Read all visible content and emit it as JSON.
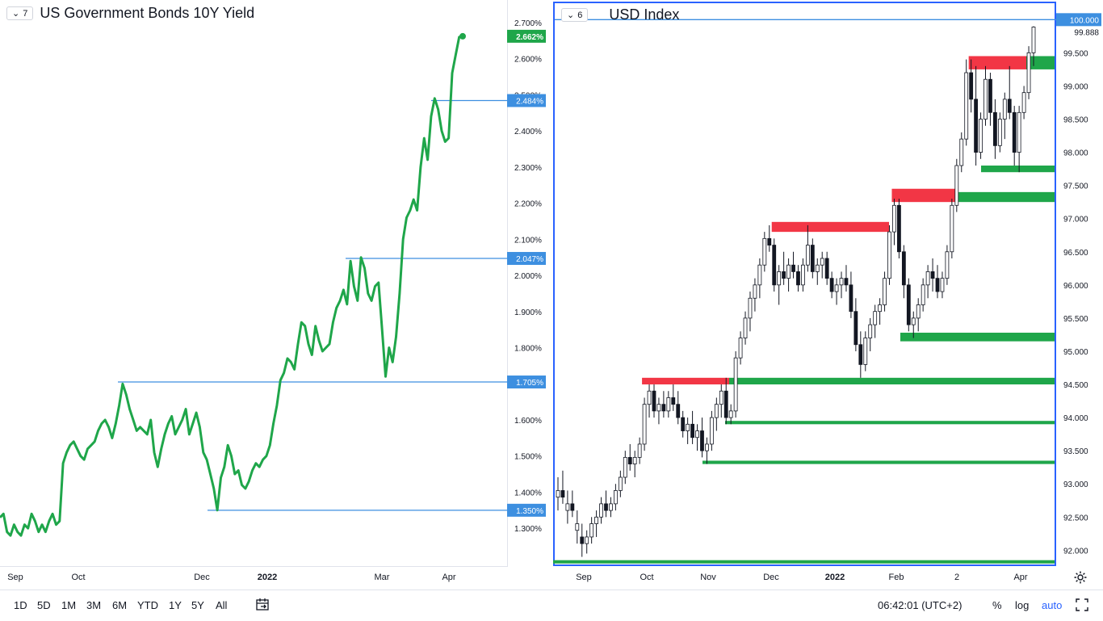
{
  "left_chart": {
    "legend_count": "7",
    "title": "US Government Bonds 10Y Yield",
    "y_ticks": [
      "2.700%",
      "2.600%",
      "2.500%",
      "2.400%",
      "2.300%",
      "2.200%",
      "2.100%",
      "2.000%",
      "1.900%",
      "1.800%",
      "1.600%",
      "1.500%",
      "1.400%",
      "1.300%"
    ],
    "price_labels": [
      "2.662%",
      "2.484%",
      "2.047%",
      "1.705%",
      "1.350%"
    ],
    "x_ticks": [
      "Sep",
      "Oct",
      "Dec",
      "2022",
      "Mar",
      "Apr"
    ],
    "colors": {
      "line": "#1fa64a",
      "hline": "#3d8fe0",
      "last_label": "#1fa64a",
      "hline_label": "#3d8fe0"
    }
  },
  "right_chart": {
    "legend_count": "6",
    "title": "USD Index",
    "y_ticks": [
      "99.500",
      "99.000",
      "98.500",
      "98.000",
      "97.500",
      "97.000",
      "96.500",
      "96.000",
      "95.500",
      "95.000",
      "94.500",
      "94.000",
      "93.500",
      "93.000",
      "92.500",
      "92.000"
    ],
    "price_labels": [
      "100.000",
      "99.888"
    ],
    "x_ticks": [
      "Sep",
      "Oct",
      "Nov",
      "Dec",
      "2022",
      "Feb",
      "2",
      "Apr"
    ],
    "colors": {
      "resistance": "#f23645",
      "support": "#1fa64a",
      "hline": "#3d8fe0",
      "candle": "#131722"
    }
  },
  "bottom_bar": {
    "timeframes": [
      "1D",
      "5D",
      "1M",
      "3M",
      "6M",
      "YTD",
      "1Y",
      "5Y",
      "All"
    ],
    "clock": "06:42:01 (UTC+2)",
    "percent": "%",
    "log": "log",
    "auto": "auto"
  },
  "chart_data": [
    {
      "type": "line",
      "title": "US Government Bonds 10Y Yield",
      "ylabel": "",
      "xlabel": "",
      "ylim": [
        1.22,
        2.74
      ],
      "x_ticks": [
        "Sep",
        "Oct",
        "Dec",
        "2022",
        "Mar",
        "Apr"
      ],
      "series": [
        {
          "values": [
            1.33,
            1.34,
            1.29,
            1.28,
            1.31,
            1.29,
            1.28,
            1.31,
            1.3,
            1.34,
            1.32,
            1.29,
            1.31,
            1.29,
            1.32,
            1.34,
            1.31,
            1.32,
            1.48,
            1.51,
            1.53,
            1.54,
            1.52,
            1.5,
            1.49,
            1.52,
            1.53,
            1.54,
            1.57,
            1.59,
            1.6,
            1.58,
            1.55,
            1.59,
            1.64,
            1.7,
            1.67,
            1.63,
            1.6,
            1.57,
            1.58,
            1.57,
            1.56,
            1.6,
            1.51,
            1.47,
            1.52,
            1.56,
            1.59,
            1.61,
            1.56,
            1.58,
            1.6,
            1.63,
            1.56,
            1.59,
            1.62,
            1.58,
            1.51,
            1.49,
            1.45,
            1.41,
            1.35,
            1.44,
            1.47,
            1.53,
            1.5,
            1.45,
            1.46,
            1.42,
            1.41,
            1.43,
            1.46,
            1.48,
            1.47,
            1.49,
            1.5,
            1.53,
            1.59,
            1.64,
            1.71,
            1.73,
            1.77,
            1.76,
            1.74,
            1.81,
            1.87,
            1.86,
            1.81,
            1.78,
            1.86,
            1.82,
            1.79,
            1.8,
            1.81,
            1.87,
            1.91,
            1.93,
            1.96,
            1.92,
            2.04,
            1.97,
            1.93,
            2.05,
            2.02,
            1.95,
            1.93,
            1.97,
            1.98,
            1.85,
            1.72,
            1.8,
            1.76,
            1.83,
            1.95,
            2.1,
            2.16,
            2.18,
            2.21,
            2.18,
            2.3,
            2.38,
            2.32,
            2.44,
            2.49,
            2.46,
            2.4,
            2.37,
            2.38,
            2.56,
            2.61,
            2.66,
            2.662
          ]
        }
      ],
      "horizontal_lines": [
        2.484,
        2.047,
        1.705,
        1.35
      ],
      "last_value": 2.662
    },
    {
      "type": "candlestick",
      "title": "USD Index",
      "ylim": [
        91.7,
        100.15
      ],
      "x_ticks": [
        "Sep",
        "Oct",
        "Nov",
        "Dec",
        "2022",
        "Feb",
        "2",
        "Apr"
      ],
      "ohlc": [
        [
          92.8,
          93.1,
          92.6,
          92.9
        ],
        [
          92.9,
          93.2,
          92.7,
          92.8
        ],
        [
          92.6,
          92.9,
          92.4,
          92.7
        ],
        [
          92.7,
          92.9,
          92.5,
          92.6
        ],
        [
          92.3,
          92.6,
          92.1,
          92.4
        ],
        [
          92.2,
          92.4,
          91.9,
          92.1
        ],
        [
          92.1,
          92.3,
          91.95,
          92.2
        ],
        [
          92.2,
          92.5,
          92.1,
          92.4
        ],
        [
          92.4,
          92.6,
          92.2,
          92.5
        ],
        [
          92.5,
          92.8,
          92.4,
          92.7
        ],
        [
          92.7,
          92.9,
          92.5,
          92.6
        ],
        [
          92.6,
          92.8,
          92.5,
          92.7
        ],
        [
          92.7,
          93.0,
          92.6,
          92.9
        ],
        [
          92.9,
          93.2,
          92.8,
          93.1
        ],
        [
          93.1,
          93.5,
          93.0,
          93.4
        ],
        [
          93.4,
          93.6,
          93.2,
          93.3
        ],
        [
          93.3,
          93.5,
          93.1,
          93.4
        ],
        [
          93.4,
          93.7,
          93.3,
          93.6
        ],
        [
          93.6,
          94.3,
          93.5,
          94.2
        ],
        [
          94.2,
          94.5,
          94.0,
          94.4
        ],
        [
          94.4,
          94.5,
          94.0,
          94.1
        ],
        [
          94.1,
          94.3,
          93.9,
          94.2
        ],
        [
          94.2,
          94.4,
          94.0,
          94.1
        ],
        [
          94.1,
          94.4,
          94.0,
          94.3
        ],
        [
          94.3,
          94.5,
          94.1,
          94.2
        ],
        [
          94.2,
          94.4,
          93.9,
          94.0
        ],
        [
          94.0,
          94.1,
          93.7,
          93.8
        ],
        [
          93.8,
          94.0,
          93.6,
          93.9
        ],
        [
          93.9,
          94.1,
          93.6,
          93.7
        ],
        [
          93.7,
          93.9,
          93.5,
          93.8
        ],
        [
          93.8,
          94.0,
          93.4,
          93.5
        ],
        [
          93.5,
          93.7,
          93.3,
          93.6
        ],
        [
          93.6,
          94.1,
          93.5,
          94.0
        ],
        [
          94.0,
          94.3,
          93.8,
          94.2
        ],
        [
          94.2,
          94.5,
          94.0,
          94.4
        ],
        [
          94.4,
          94.6,
          93.9,
          94.0
        ],
        [
          94.0,
          94.2,
          93.9,
          94.1
        ],
        [
          94.1,
          95.0,
          94.0,
          94.9
        ],
        [
          94.9,
          95.3,
          94.8,
          95.2
        ],
        [
          95.2,
          95.6,
          95.1,
          95.5
        ],
        [
          95.5,
          95.9,
          95.3,
          95.8
        ],
        [
          95.8,
          96.1,
          95.6,
          96.0
        ],
        [
          96.0,
          96.4,
          95.8,
          96.3
        ],
        [
          96.3,
          96.8,
          96.2,
          96.7
        ],
        [
          96.7,
          96.9,
          96.5,
          96.6
        ],
        [
          96.6,
          96.7,
          95.9,
          96.0
        ],
        [
          96.0,
          96.3,
          95.7,
          96.2
        ],
        [
          96.2,
          96.5,
          96.0,
          96.1
        ],
        [
          96.1,
          96.4,
          95.9,
          96.3
        ],
        [
          96.3,
          96.5,
          96.1,
          96.2
        ],
        [
          96.2,
          96.3,
          95.9,
          96.0
        ],
        [
          96.0,
          96.4,
          95.9,
          96.3
        ],
        [
          96.3,
          96.9,
          96.2,
          96.6
        ],
        [
          96.6,
          96.7,
          96.1,
          96.2
        ],
        [
          96.2,
          96.4,
          96.0,
          96.3
        ],
        [
          96.3,
          96.5,
          96.1,
          96.4
        ],
        [
          96.4,
          96.5,
          96.0,
          96.1
        ],
        [
          96.1,
          96.2,
          95.8,
          95.9
        ],
        [
          95.9,
          96.1,
          95.7,
          96.0
        ],
        [
          96.0,
          96.2,
          95.8,
          96.1
        ],
        [
          96.1,
          96.3,
          95.9,
          96.0
        ],
        [
          96.0,
          96.2,
          95.5,
          95.6
        ],
        [
          95.6,
          95.8,
          95.0,
          95.1
        ],
        [
          95.1,
          95.3,
          94.6,
          94.8
        ],
        [
          94.8,
          95.3,
          94.7,
          95.2
        ],
        [
          95.2,
          95.5,
          95.0,
          95.4
        ],
        [
          95.4,
          95.7,
          95.2,
          95.6
        ],
        [
          95.6,
          95.8,
          95.4,
          95.7
        ],
        [
          95.7,
          96.2,
          95.6,
          96.1
        ],
        [
          96.1,
          96.9,
          96.0,
          96.8
        ],
        [
          96.8,
          97.3,
          96.6,
          97.2
        ],
        [
          97.2,
          97.3,
          96.4,
          96.5
        ],
        [
          96.5,
          96.6,
          95.8,
          96.0
        ],
        [
          96.0,
          96.1,
          95.3,
          95.4
        ],
        [
          95.4,
          95.6,
          95.2,
          95.5
        ],
        [
          95.5,
          95.8,
          95.3,
          95.7
        ],
        [
          95.7,
          96.1,
          95.6,
          96.0
        ],
        [
          96.0,
          96.3,
          95.8,
          96.2
        ],
        [
          96.2,
          96.4,
          95.9,
          96.1
        ],
        [
          96.1,
          96.3,
          95.8,
          95.9
        ],
        [
          95.9,
          96.2,
          95.8,
          96.1
        ],
        [
          96.1,
          96.6,
          96.0,
          96.5
        ],
        [
          96.5,
          97.3,
          96.4,
          97.2
        ],
        [
          97.2,
          97.9,
          97.1,
          97.8
        ],
        [
          97.8,
          98.3,
          97.7,
          98.2
        ],
        [
          98.2,
          99.4,
          98.1,
          99.2
        ],
        [
          99.2,
          99.4,
          98.6,
          98.8
        ],
        [
          98.8,
          99.3,
          97.8,
          98.0
        ],
        [
          98.0,
          98.6,
          97.9,
          98.5
        ],
        [
          98.5,
          99.3,
          98.4,
          99.1
        ],
        [
          99.1,
          99.2,
          98.4,
          98.6
        ],
        [
          98.6,
          98.8,
          97.9,
          98.1
        ],
        [
          98.1,
          98.6,
          98.0,
          98.5
        ],
        [
          98.5,
          98.9,
          98.2,
          98.8
        ],
        [
          98.8,
          99.3,
          98.5,
          98.6
        ],
        [
          98.6,
          98.7,
          97.8,
          98.0
        ],
        [
          98.0,
          98.7,
          97.7,
          98.6
        ],
        [
          98.6,
          99.0,
          98.5,
          98.9
        ],
        [
          98.9,
          99.6,
          98.8,
          99.5
        ],
        [
          99.5,
          99.9,
          99.3,
          99.888
        ]
      ],
      "resistance_zones": [
        [
          94.5,
          94.6
        ],
        [
          96.8,
          96.95
        ],
        [
          97.25,
          97.45
        ],
        [
          99.25,
          99.45
        ]
      ],
      "support_zones": [
        [
          99.25,
          99.45
        ],
        [
          97.7,
          97.8
        ],
        [
          97.25,
          97.4
        ],
        [
          95.15,
          95.28
        ],
        [
          94.5,
          94.6
        ],
        [
          93.9,
          93.95
        ],
        [
          93.3,
          93.35
        ],
        [
          91.8,
          91.85
        ]
      ],
      "horizontal_lines": [
        100.0
      ],
      "last_value": 99.888
    }
  ]
}
